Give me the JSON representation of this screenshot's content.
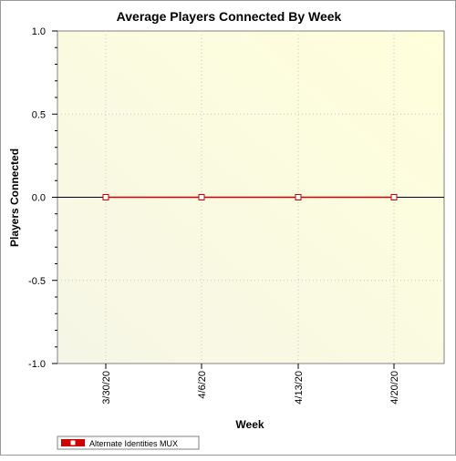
{
  "chart_data": {
    "type": "line",
    "title": "Average Players Connected By Week",
    "xlabel": "Week",
    "ylabel": "Players Connected",
    "categories": [
      "3/30/20",
      "4/6/20",
      "4/13/20",
      "4/20/20"
    ],
    "series": [
      {
        "name": "Alternate Identities MUX",
        "values": [
          0,
          0,
          0,
          0
        ],
        "color": "#cc0000"
      }
    ],
    "ylim": [
      -1.0,
      1.0
    ],
    "yticks": [
      "1.0",
      "0.5",
      "0.0",
      "-0.5",
      "-1.0"
    ],
    "ytick_values": [
      1.0,
      0.5,
      0.0,
      -0.5,
      -1.0
    ],
    "grid": true,
    "legend_position": "bottom-left",
    "colors": {
      "plot_background_light": "#ffffe0",
      "plot_background_dark": "#f7f7e8",
      "grid": "#c8c8c8",
      "zero_line": "#000000",
      "marker_fill": "#ffffff"
    }
  }
}
